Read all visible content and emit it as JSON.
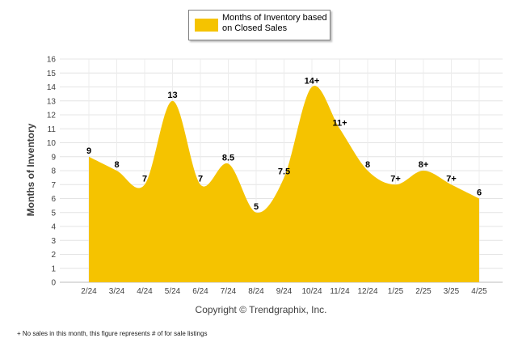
{
  "chart_data": {
    "type": "area",
    "categories": [
      "2/24",
      "3/24",
      "4/24",
      "5/24",
      "6/24",
      "7/24",
      "8/24",
      "9/24",
      "10/24",
      "11/24",
      "12/24",
      "1/25",
      "2/25",
      "3/25",
      "4/25"
    ],
    "series": [
      {
        "name": "Months of Inventory based on Closed Sales",
        "values": [
          9,
          8,
          7,
          13,
          7,
          8.5,
          5,
          7.5,
          14,
          11,
          8,
          7,
          8,
          7,
          6
        ],
        "labels": [
          "9",
          "8",
          "7",
          "13",
          "7",
          "8.5",
          "5",
          "7.5",
          "14+",
          "11+",
          "8",
          "7+",
          "8+",
          "7+",
          "6"
        ]
      }
    ],
    "ylabel": "Months of Inventory",
    "ylim": [
      0,
      16
    ],
    "yticks": [
      "0",
      "1",
      "2",
      "3",
      "4",
      "5",
      "6",
      "7",
      "8",
      "9",
      "10",
      "11",
      "12",
      "13",
      "14",
      "15",
      "16"
    ],
    "grid": true,
    "legend_position": "top-center",
    "color": "#F5C300"
  },
  "copyright": "Copyright © Trendgraphix, Inc.",
  "footnote": "+  No sales in this month, this figure represents # of for sale listings"
}
